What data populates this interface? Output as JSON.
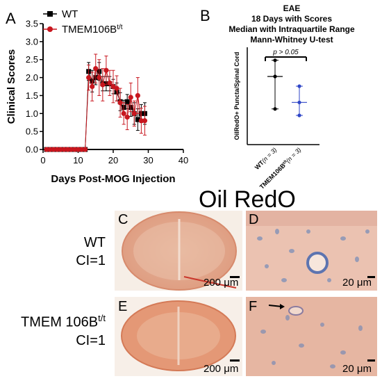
{
  "panels": {
    "A": "A",
    "B": "B",
    "C": "C",
    "D": "D",
    "E": "E",
    "F": "F"
  },
  "chart_data": [
    {
      "type": "line",
      "panel": "A",
      "xlabel": "Days Post-MOG Injection",
      "ylabel": "Clinical Scores",
      "xlim": [
        0,
        40
      ],
      "ylim": [
        0,
        3.5
      ],
      "xticks": [
        "0",
        "10",
        "20",
        "30",
        "40"
      ],
      "yticks": [
        "0.0",
        "0.5",
        "1.0",
        "1.5",
        "2.0",
        "2.5",
        "3.0",
        "3.5"
      ],
      "legend_position": "top-left",
      "series": [
        {
          "name": "WT",
          "color": "#000000",
          "marker": "square",
          "x": [
            1,
            2,
            3,
            4,
            5,
            6,
            7,
            8,
            9,
            10,
            11,
            12,
            13,
            14,
            15,
            16,
            17,
            18,
            19,
            20,
            21,
            22,
            23,
            24,
            25,
            26,
            27,
            28,
            29
          ],
          "y": [
            0,
            0,
            0,
            0,
            0,
            0,
            0,
            0,
            0,
            0,
            0,
            0,
            2.17,
            1.9,
            2.0,
            2.17,
            1.83,
            1.83,
            1.83,
            1.75,
            1.6,
            1.33,
            1.17,
            1.33,
            1.17,
            1.0,
            0.83,
            1.0,
            1.0
          ],
          "err": [
            0,
            0,
            0,
            0,
            0,
            0,
            0,
            0,
            0,
            0,
            0,
            0,
            0.25,
            0.3,
            0.2,
            0.25,
            0.2,
            0.2,
            0.2,
            0.2,
            0.25,
            0.25,
            0.2,
            0.2,
            0.25,
            0.3,
            0.3,
            0.25,
            0.3
          ]
        },
        {
          "name": "TMEM106B",
          "name_sup": "t/t",
          "color": "#c8161e",
          "marker": "circle",
          "x": [
            1,
            2,
            3,
            4,
            5,
            6,
            7,
            8,
            9,
            10,
            11,
            12,
            13,
            14,
            15,
            16,
            17,
            18,
            19,
            20,
            21,
            22,
            23,
            24,
            25,
            26,
            27,
            28,
            29
          ],
          "y": [
            0,
            0,
            0,
            0,
            0,
            0,
            0,
            0,
            0,
            0,
            0,
            0,
            2.0,
            1.75,
            2.25,
            2.0,
            1.8,
            2.2,
            1.85,
            1.75,
            1.7,
            1.3,
            1.0,
            0.9,
            1.45,
            1.0,
            1.5,
            0.8,
            0.8
          ],
          "err": [
            0,
            0,
            0,
            0,
            0,
            0,
            0,
            0,
            0,
            0,
            0,
            0,
            0.35,
            0.4,
            0.4,
            0.5,
            0.45,
            0.4,
            0.35,
            0.45,
            0.35,
            0.4,
            0.3,
            0.35,
            0.4,
            0.35,
            0.5,
            0.35,
            0.4
          ]
        }
      ]
    },
    {
      "type": "scatter",
      "panel": "B",
      "title_lines": [
        "EAE",
        "18 Days with Scores",
        "Median with Intraquartile Range",
        "Mann-Whitney U-test"
      ],
      "ylabel": "OilRedO+ Puncta/Spinal Cord",
      "ylim": [
        0,
        30
      ],
      "annotation": "p > 0.05",
      "categories": [
        {
          "label": "WT",
          "n_label": "(n = 3)",
          "color": "#000000",
          "values": [
            26,
            21,
            11
          ],
          "median": 21,
          "q": [
            11,
            26
          ]
        },
        {
          "label": "TMEM106B",
          "label_sup": "t/t",
          "n_label": "(n = 3)",
          "color": "#2f46c7",
          "values": [
            18,
            13,
            9
          ],
          "median": 13,
          "q": [
            9,
            18
          ]
        }
      ]
    }
  ],
  "figure": {
    "stain_title": "Oil RedO",
    "rows": [
      {
        "label_line1": "WT",
        "label_line2": "CI=1"
      },
      {
        "label_line1": "TMEM 106B",
        "label_line1_sup": "t/t",
        "label_line2": "CI=1"
      }
    ],
    "scalebar_low": "200 μm",
    "scalebar_high": "20 μm"
  }
}
